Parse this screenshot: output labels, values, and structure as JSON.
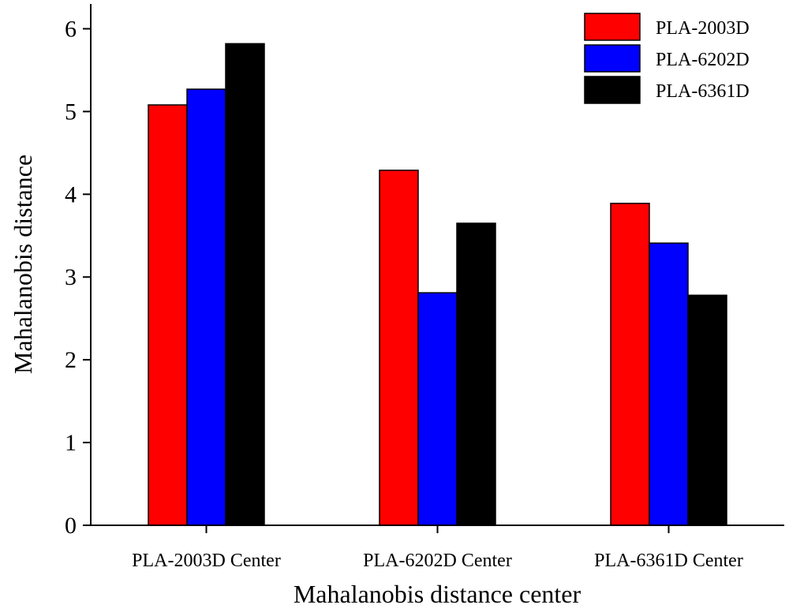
{
  "chart_data": {
    "type": "bar",
    "title": "",
    "xlabel": "Mahalanobis distance center",
    "ylabel": "Mahalanobis distance",
    "ylim": [
      0,
      6.3
    ],
    "yticks": [
      0,
      1,
      2,
      3,
      4,
      5,
      6
    ],
    "categories": [
      "PLA-2003D Center",
      "PLA-6202D Center",
      "PLA-6361D Center"
    ],
    "series": [
      {
        "name": "PLA-2003D",
        "color": "#ff0000",
        "values": [
          5.08,
          4.29,
          3.89
        ]
      },
      {
        "name": "PLA-6202D",
        "color": "#0000ff",
        "values": [
          5.27,
          2.81,
          3.41
        ]
      },
      {
        "name": "PLA-6361D",
        "color": "#000000",
        "values": [
          5.82,
          3.65,
          2.78
        ]
      }
    ],
    "legend": {
      "position": "top-right"
    },
    "grid": false
  }
}
